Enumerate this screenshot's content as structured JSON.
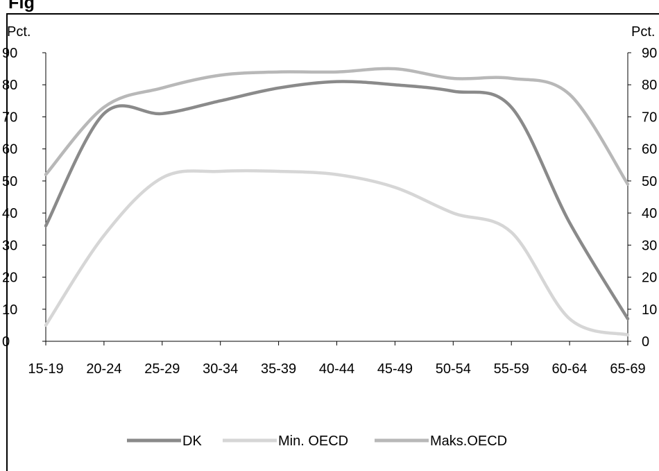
{
  "title": "Fig",
  "chart_data": {
    "type": "line",
    "ylabel_left": "Pct.",
    "ylabel_right": "Pct.",
    "ylim": [
      0,
      90
    ],
    "yticks": [
      0,
      10,
      20,
      30,
      40,
      50,
      60,
      70,
      80,
      90
    ],
    "categories": [
      "15-19",
      "20-24",
      "25-29",
      "30-34",
      "35-39",
      "40-44",
      "45-49",
      "50-54",
      "55-59",
      "60-64",
      "65-69"
    ],
    "series": [
      {
        "name": "DK",
        "color": "#8a8a8a",
        "values": [
          36,
          71,
          71,
          75,
          79,
          81,
          80,
          78,
          73,
          37,
          7
        ]
      },
      {
        "name": "Min. OECD",
        "color": "#d6d6d6",
        "values": [
          5,
          33,
          51,
          53,
          53,
          52,
          48,
          40,
          34,
          7,
          2
        ]
      },
      {
        "name": "Maks.OECD",
        "color": "#b8b8b8",
        "values": [
          52,
          73,
          79,
          83,
          84,
          84,
          85,
          82,
          82,
          77,
          49
        ]
      }
    ],
    "legend_position": "bottom"
  }
}
